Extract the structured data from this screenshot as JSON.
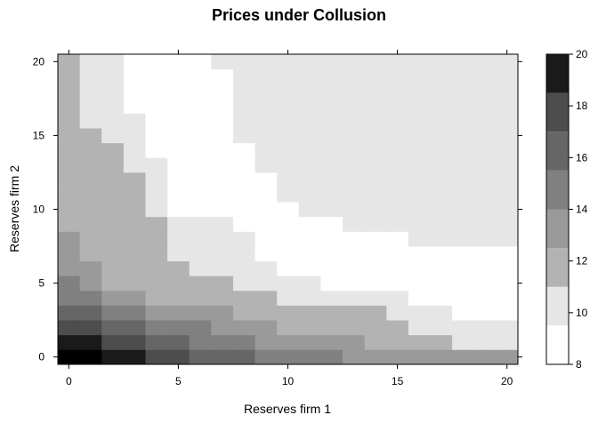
{
  "chart_data": {
    "type": "heatmap",
    "title": "Prices under Collusion",
    "xlabel": "Reserves firm 1",
    "ylabel": "Reserves firm 2",
    "xlim": [
      -0.5,
      20.5
    ],
    "ylim": [
      -0.5,
      20.5
    ],
    "x_ticks": [
      0,
      5,
      10,
      15,
      20
    ],
    "y_ticks": [
      0,
      5,
      10,
      15,
      20
    ],
    "colorbar": {
      "breaks": [
        8,
        9.5,
        11,
        12.5,
        14,
        15.5,
        17,
        18.5,
        20
      ],
      "colors": [
        "#ffffff",
        "#e6e6e6",
        "#b3b3b3",
        "#9a9a9a",
        "#808080",
        "#666666",
        "#4d4d4d",
        "#1a1a1a",
        "#000000"
      ],
      "ticks": [
        8,
        10,
        12,
        14,
        16,
        18,
        20
      ]
    },
    "grid": false,
    "legend": "right colorbar",
    "z_levels_by_row_y_from_0": [
      "887766555444433333333",
      "776655444333332222111",
      "665544433322222211111",
      "554433332222222111000",
      "443322222211111100000",
      "432222221111000000000",
      "332222111100000000000",
      "322221111000000000000",
      "322221111000000011111",
      "222221110000011111111",
      "222210000001111111111",
      "222210000011111111111",
      "222210000011111111111",
      "222110000111111111111",
      "222100000111111111111",
      "221100001111111111111",
      "211100001111111111111",
      "211000001111111111111",
      "211000001111111111111",
      "211000001111111111111",
      "211000011111111111111"
    ]
  }
}
